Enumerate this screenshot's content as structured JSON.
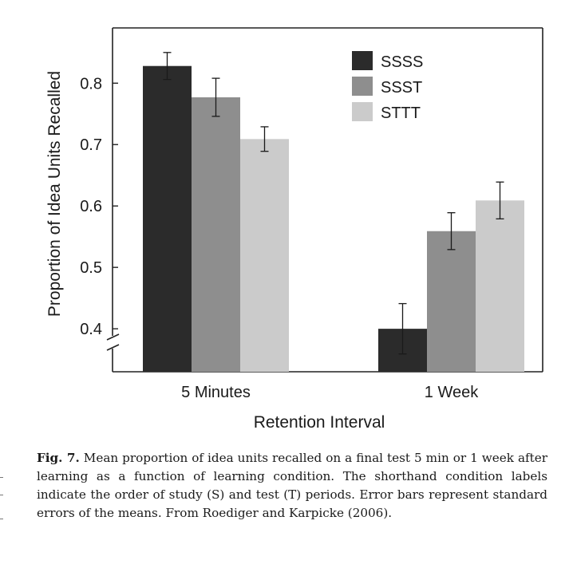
{
  "chart_data": {
    "type": "bar",
    "categories": [
      "5 Minutes",
      "1 Week"
    ],
    "series": [
      {
        "name": "SSSS",
        "color": "#2b2b2b",
        "values": [
          0.828,
          0.4
        ],
        "errors": [
          0.022,
          0.041
        ]
      },
      {
        "name": "SSST",
        "color": "#8e8e8e",
        "values": [
          0.777,
          0.559
        ],
        "errors": [
          0.031,
          0.03
        ]
      },
      {
        "name": "STTT",
        "color": "#cbcbcb",
        "values": [
          0.709,
          0.609
        ],
        "errors": [
          0.02,
          0.03
        ]
      }
    ],
    "xlabel": "Retention Interval",
    "ylabel": "Proportion of Idea Units Recalled",
    "yticks": [
      "0.4",
      "0.5",
      "0.6",
      "0.7",
      "0.8"
    ],
    "ylim": [
      0.33,
      0.89
    ],
    "axis_break": true,
    "legend_position": "top-right",
    "error_bars": "standard error of the mean"
  },
  "caption": {
    "label": "Fig. 7.",
    "text": "Mean proportion of idea units recalled on a final test 5 min or 1 week after learning as a function of learning condition. The shorthand condition labels indicate the order of study (S) and test (T) periods. Error bars represent standard errors of the means. From Roediger and Karpicke (2006)."
  }
}
